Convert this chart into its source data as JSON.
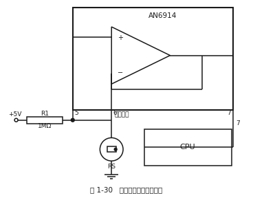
{
  "title": "图 1-30   湿敏电阻器的应用电路",
  "an6914_label": "AN6914",
  "cpu_label": "CPU",
  "r1_label": "R1",
  "r1_val": "1MΩ",
  "rs_label": "RS",
  "v5_label": "+5V",
  "ref_label": "基准电压",
  "pin5": "5",
  "pin6": "6",
  "pin7_top": "7",
  "pin7_bot": "7",
  "fg": "#1a1a1a"
}
